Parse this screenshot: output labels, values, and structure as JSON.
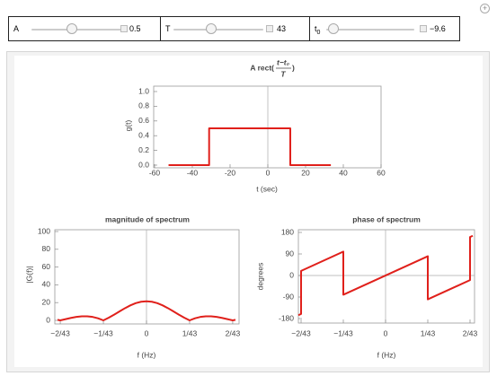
{
  "controls": [
    {
      "label": "A",
      "value": "0.5"
    },
    {
      "label": "T",
      "value": "43"
    },
    {
      "label": "t",
      "label_sub": "0",
      "value": "−9.6"
    }
  ],
  "chart_data": [
    {
      "type": "line",
      "title": "A rect(",
      "title_fraction": [
        "t−t₀",
        "T"
      ],
      "title_end": ")",
      "xlabel": "t (sec)",
      "ylabel": "g(t)",
      "color": "#e0201b",
      "x": [
        -52.6,
        -31.1,
        -31.1,
        11.9,
        11.9,
        33.4
      ],
      "y": [
        0,
        0,
        0.5,
        0.5,
        0,
        0
      ],
      "xlim": [
        -60,
        60
      ],
      "xticks": [
        -60,
        -40,
        -20,
        0,
        20,
        40,
        60
      ],
      "ylim": [
        0,
        1
      ],
      "yticks": [
        {
          "value": 0,
          "label": "0.0"
        },
        0.2,
        0.4,
        0.6,
        0.8,
        {
          "value": 1,
          "label": "1.0"
        }
      ]
    },
    {
      "type": "line",
      "title": "magnitude of spectrum",
      "xlabel": "f (Hz)",
      "ylabel": "|G(f)|",
      "color": "#e0201b",
      "x": [
        -0.048,
        -0.046512,
        -0.043605,
        -0.040698,
        -0.037791,
        -0.034884,
        -0.031977,
        -0.02907,
        -0.026163,
        -0.023256,
        -0.020349,
        -0.017442,
        -0.014535,
        -0.011628,
        -0.008721,
        -0.005814,
        -0.002907,
        0,
        0.002907,
        0.005814,
        0.008721,
        0.011628,
        0.014535,
        0.017442,
        0.020349,
        0.023256,
        0.026163,
        0.02907,
        0.031977,
        0.034884,
        0.037791,
        0.040698,
        0.043605,
        0.046512,
        0.048
      ],
      "y": [
        0.66,
        0,
        1.4,
        2.77,
        3.89,
        4.56,
        4.6,
        3.87,
        2.33,
        0,
        2.99,
        6.45,
        10.12,
        13.69,
        16.86,
        19.36,
        20.95,
        21.5,
        20.95,
        19.36,
        16.86,
        13.69,
        10.12,
        6.45,
        2.99,
        0,
        2.33,
        3.87,
        4.6,
        4.56,
        3.89,
        2.77,
        1.4,
        0,
        0.66
      ],
      "xlim": [
        -0.048,
        0.048
      ],
      "xticks": [
        {
          "value": -0.046512,
          "label": "−2/43"
        },
        {
          "value": -0.023256,
          "label": "−1/43"
        },
        0,
        {
          "value": 0.023256,
          "label": "1/43"
        },
        {
          "value": 0.046512,
          "label": "2/43"
        }
      ],
      "ylim": [
        0,
        100
      ],
      "yticks": [
        0,
        20,
        40,
        60,
        80,
        100
      ]
    },
    {
      "type": "line",
      "title": "phase of spectrum",
      "xlabel": "f (Hz)",
      "ylabel": "degrees",
      "color": "#e0201b",
      "x": [
        -0.048,
        -0.046512,
        -0.046512,
        -0.023256,
        -0.023256,
        0.023256,
        0.023256,
        0.046512,
        0.046512,
        0.048
      ],
      "y": [
        -165.9,
        -160.74,
        19.26,
        99.63,
        -80.37,
        80.37,
        -99.63,
        -19.26,
        160.74,
        165.9
      ],
      "xlim": [
        -0.048,
        0.048
      ],
      "xticks": [
        {
          "value": -0.046512,
          "label": "−2/43"
        },
        {
          "value": -0.023256,
          "label": "−1/43"
        },
        0,
        {
          "value": 0.023256,
          "label": "1/43"
        },
        {
          "value": 0.046512,
          "label": "2/43"
        }
      ],
      "ylim": [
        -180,
        180
      ],
      "yticks": [
        -180,
        -90,
        0,
        90,
        180
      ]
    }
  ]
}
